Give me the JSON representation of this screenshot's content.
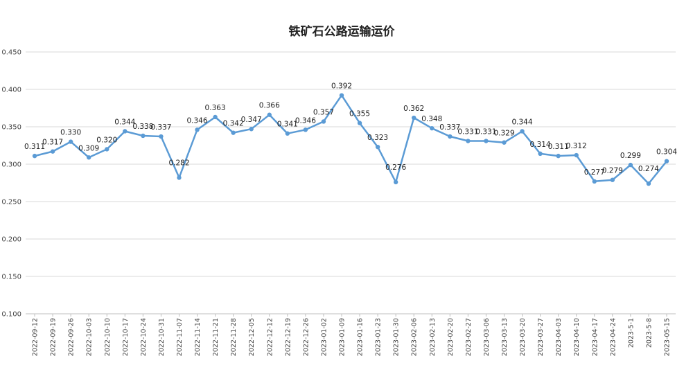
{
  "chart_data": {
    "type": "line",
    "title": "铁矿石公路运输运价",
    "xlabel": "",
    "ylabel": "",
    "ylim": [
      0.1,
      0.45
    ],
    "yticks": [
      "0.100",
      "0.150",
      "0.200",
      "0.250",
      "0.300",
      "0.350",
      "0.400",
      "0.450"
    ],
    "grid": true,
    "legend": "none",
    "colors": {
      "series": "#5b9bd5",
      "grid": "#d9d9d9"
    },
    "categories": [
      "2022-09-12",
      "2022-09-19",
      "2022-09-26",
      "2022-10-03",
      "2022-10-10",
      "2022-10-17",
      "2022-10-24",
      "2022-10-31",
      "2022-11-07",
      "2022-11-14",
      "2022-11-21",
      "2022-11-28",
      "2022-12-05",
      "2022-12-12",
      "2022-12-19",
      "2022-12-26",
      "2023-01-02",
      "2023-01-09",
      "2023-01-16",
      "2023-01-23",
      "2023-01-30",
      "2023-02-06",
      "2023-02-13",
      "2023-02-20",
      "2023-02-27",
      "2023-03-06",
      "2023-03-13",
      "2023-03-20",
      "2023-03-27",
      "2023-04-03",
      "2023-04-10",
      "2023-04-17",
      "2023-04-24",
      "2023-5-1",
      "2023-5-8",
      "2023-05-15"
    ],
    "series": [
      {
        "values": [
          0.311,
          0.317,
          0.33,
          0.309,
          0.32,
          0.344,
          0.338,
          0.337,
          0.282,
          0.346,
          0.363,
          0.342,
          0.347,
          0.366,
          0.341,
          0.346,
          0.357,
          0.392,
          0.355,
          0.323,
          0.276,
          0.362,
          0.348,
          0.337,
          0.331,
          0.331,
          0.329,
          0.344,
          0.314,
          0.311,
          0.312,
          0.277,
          0.279,
          0.299,
          0.274,
          0.304
        ],
        "labels": [
          "0.311",
          "0.317",
          "0.330",
          "0.309",
          "0.320",
          "0.344",
          "0.338",
          "0.337",
          "0.282",
          "0.346",
          "0.363",
          "0.342",
          "0.347",
          "0.366",
          "0.341",
          "0.346",
          "0.357",
          "0.392",
          "0.355",
          "0.323",
          "0.276",
          "0.362",
          "0.348",
          "0.337",
          "0.331",
          "0.331",
          "0.329",
          "0.344",
          "0.314",
          "0.311",
          "0.312",
          "0.277",
          "0.279",
          "0.299",
          "0.274",
          "0.304"
        ]
      }
    ]
  }
}
